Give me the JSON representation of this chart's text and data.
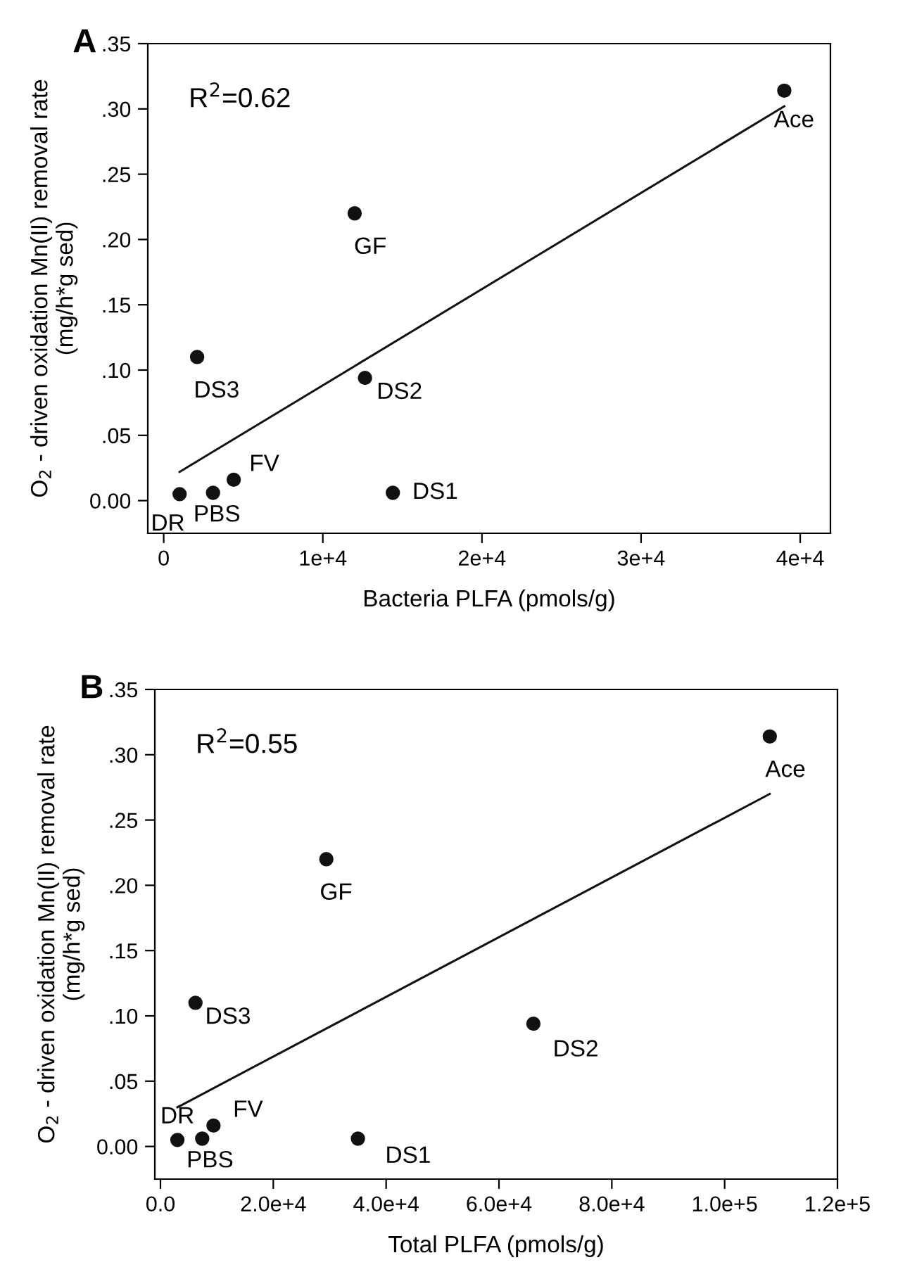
{
  "chart_data": [
    {
      "type": "scatter",
      "title": "A",
      "xlabel": "Bacteria PLFA (pmols/g)",
      "ylabel": "O$_{2}$ - driven oxidation Mn(II) removal rate\n(mg/h*g sed)",
      "xlim": [
        -1000,
        41900
      ],
      "xticks": [
        {
          "value": 0,
          "label": "0"
        },
        {
          "value": 10000,
          "label": "1e+4"
        },
        {
          "value": 20000,
          "label": "2e+4"
        },
        {
          "value": 30000,
          "label": "3e+4"
        },
        {
          "value": 40000,
          "label": "4e+4"
        }
      ],
      "ylim": [
        -0.025,
        0.35
      ],
      "yticks": [
        {
          "value": 0,
          "label": "0.00"
        },
        {
          "value": 0.05,
          "label": ".05"
        },
        {
          "value": 0.1,
          "label": ".10"
        },
        {
          "value": 0.15,
          "label": ".15"
        },
        {
          "value": 0.2,
          "label": ".20"
        },
        {
          "value": 0.25,
          "label": ".25"
        },
        {
          "value": 0.3,
          "label": ".30"
        },
        {
          "value": 0.35,
          "label": ".35"
        }
      ],
      "grid": false,
      "series": [
        {
          "marker": "circle",
          "color": "#111111",
          "x": [
            1000,
            3100,
            4400,
            2100,
            12000,
            12650,
            14400,
            39000
          ],
          "values": [
            0.005,
            0.006,
            0.016,
            0.11,
            0.22,
            0.094,
            0.006,
            0.314
          ]
        },
        {
          "type": "line",
          "color": "#111111",
          "x": [
            1000,
            39000
          ],
          "values": [
            0.022,
            0.302
          ]
        }
      ],
      "annotations": [
        "R$^{2}$=0.62",
        {
          "text": "DR",
          "x": 1000,
          "y": 0.005
        },
        {
          "text": "PBS",
          "x": 3100,
          "y": 0.006
        },
        {
          "text": "FV",
          "x": 4400,
          "y": 0.016
        },
        {
          "text": "DS3",
          "x": 2100,
          "y": 0.11
        },
        {
          "text": "GF",
          "x": 12000,
          "y": 0.22
        },
        {
          "text": "DS2",
          "x": 12650,
          "y": 0.094
        },
        {
          "text": "DS1",
          "x": 14400,
          "y": 0.006
        },
        {
          "text": "Ace",
          "x": 39000,
          "y": 0.314
        }
      ]
    },
    {
      "type": "scatter",
      "title": "B",
      "xlabel": "Total PLFA (pmols/g)",
      "ylabel": "O$_{2}$ - driven oxidation Mn(II) removal rate\n(mg/h*g sed)",
      "xlim": [
        -1000,
        120000
      ],
      "xticks": [
        {
          "value": 0,
          "label": "0.0"
        },
        {
          "value": 20000,
          "label": "2.0e+4"
        },
        {
          "value": 40000,
          "label": "4.0e+4"
        },
        {
          "value": 60000,
          "label": "6.0e+4"
        },
        {
          "value": 80000,
          "label": "8.0e+4"
        },
        {
          "value": 100000,
          "label": "1.0e+5"
        },
        {
          "value": 120000,
          "label": "1.2e+5"
        }
      ],
      "ylim": [
        -0.025,
        0.35
      ],
      "yticks": [
        {
          "value": 0,
          "label": "0.00"
        },
        {
          "value": 0.05,
          "label": ".05"
        },
        {
          "value": 0.1,
          "label": ".10"
        },
        {
          "value": 0.15,
          "label": ".15"
        },
        {
          "value": 0.2,
          "label": ".20"
        },
        {
          "value": 0.25,
          "label": ".25"
        },
        {
          "value": 0.3,
          "label": ".30"
        },
        {
          "value": 0.35,
          "label": ".35"
        }
      ],
      "grid": false,
      "series": [
        {
          "marker": "circle",
          "color": "#111111",
          "x": [
            3000,
            7400,
            9400,
            6200,
            29400,
            66100,
            35000,
            108000
          ],
          "values": [
            0.005,
            0.006,
            0.016,
            0.11,
            0.22,
            0.094,
            0.006,
            0.314
          ]
        },
        {
          "type": "line",
          "color": "#111111",
          "x": [
            3000,
            108000
          ],
          "values": [
            0.03,
            0.27
          ]
        }
      ],
      "annotations": [
        "R$^{2}$=0.55",
        {
          "text": "DR",
          "x": 3000,
          "y": 0.005
        },
        {
          "text": "PBS",
          "x": 7400,
          "y": 0.006
        },
        {
          "text": "FV",
          "x": 9400,
          "y": 0.016
        },
        {
          "text": "DS3",
          "x": 6200,
          "y": 0.11
        },
        {
          "text": "GF",
          "x": 29400,
          "y": 0.22
        },
        {
          "text": "DS2",
          "x": 66100,
          "y": 0.094
        },
        {
          "text": "DS1",
          "x": 35000,
          "y": 0.0065
        },
        {
          "text": "Ace",
          "x": 108000,
          "y": 0.314
        }
      ]
    }
  ]
}
